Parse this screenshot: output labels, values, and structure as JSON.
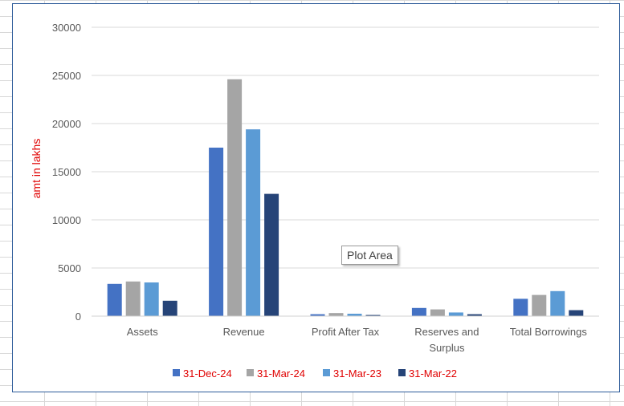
{
  "chart_data": {
    "type": "bar",
    "categories": [
      "Assets",
      "Revenue",
      "Profit After Tax",
      "Reserves and Surplus",
      "Total Borrowings"
    ],
    "category_lines": [
      [
        "Assets"
      ],
      [
        "Revenue"
      ],
      [
        "Profit After Tax"
      ],
      [
        "Reserves and",
        "Surplus"
      ],
      [
        "Total Borrowings"
      ]
    ],
    "series": [
      {
        "name": "31-Dec-24",
        "color": "#4472c4",
        "values": [
          3350,
          17500,
          200,
          850,
          1800
        ]
      },
      {
        "name": "31-Mar-24",
        "color": "#a5a5a5",
        "values": [
          3600,
          24600,
          320,
          700,
          2200
        ]
      },
      {
        "name": "31-Mar-23",
        "color": "#5b9bd5",
        "values": [
          3500,
          19400,
          250,
          380,
          2600
        ]
      },
      {
        "name": "31-Mar-22",
        "color": "#264478",
        "values": [
          1600,
          12700,
          120,
          200,
          620
        ]
      }
    ],
    "ylabel": "amt in lakhs",
    "xlabel": "",
    "ylim": [
      0,
      30000
    ],
    "yticks": [
      0,
      5000,
      10000,
      15000,
      20000,
      25000,
      30000
    ],
    "grid": true,
    "legend_position": "bottom",
    "label_color": "#e00000"
  },
  "tooltip": {
    "text": "Plot Area"
  }
}
